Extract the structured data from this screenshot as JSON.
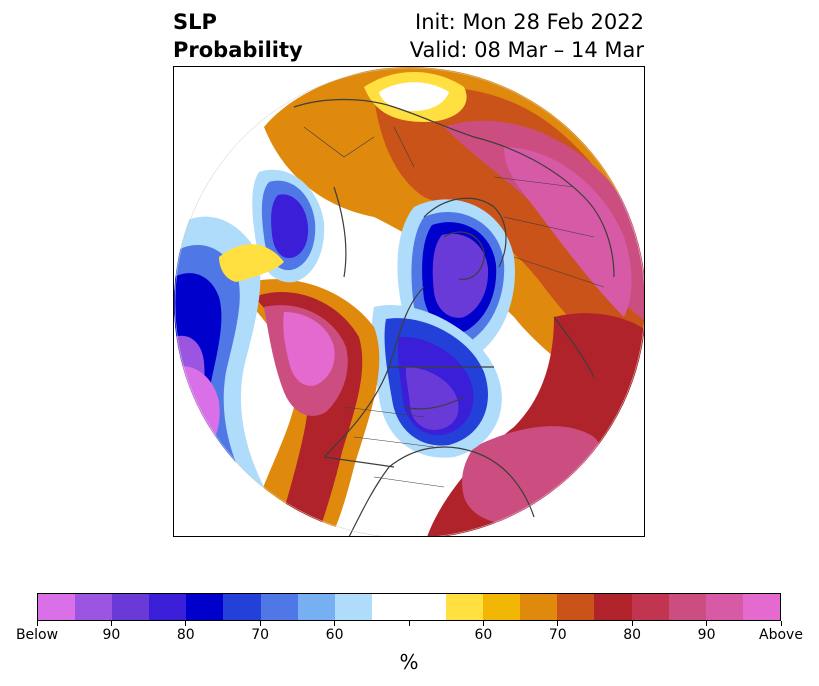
{
  "title": {
    "variable": "SLP",
    "product": "Probability",
    "init": "Init: Mon 28 Feb 2022",
    "valid": "Valid: 08 Mar – 14 Mar"
  },
  "colorbar": {
    "unit": "%",
    "labels": [
      "Below",
      "90",
      "80",
      "70",
      "60",
      "",
      "60",
      "70",
      "80",
      "90",
      "Above"
    ],
    "colors": [
      "#da70e8",
      "#9b55e0",
      "#6a3ad8",
      "#3b1ed8",
      "#0000cc",
      "#2341d8",
      "#4f78e6",
      "#76b0f2",
      "#aedcfa",
      "#ffffff",
      "#ffffff",
      "#ffe040",
      "#f2b705",
      "#e08a0d",
      "#c95318",
      "#b1232a",
      "#c13550",
      "#cc4e80",
      "#d65aa6",
      "#e46ad0"
    ]
  },
  "map": {
    "projection": "north-polar-stereographic",
    "region": "North America / North Pacific / Arctic",
    "features": [
      "coastlines",
      "country borders",
      "state/province borders"
    ]
  }
}
